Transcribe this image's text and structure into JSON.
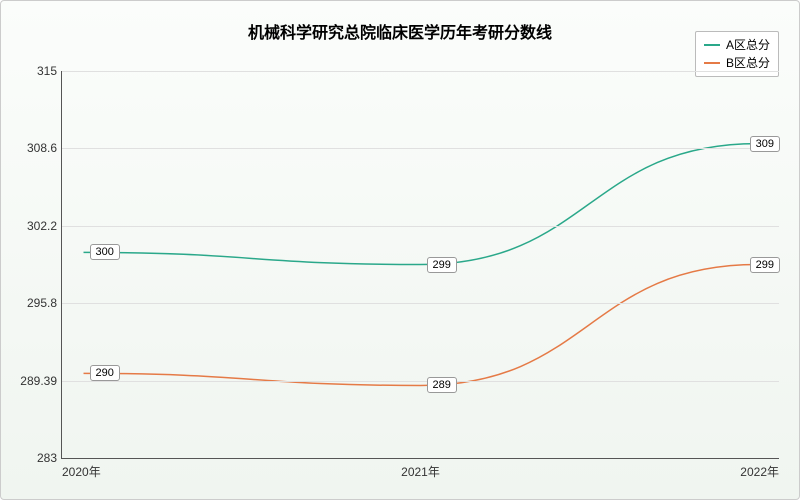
{
  "chart": {
    "type": "line",
    "title": "机械科学研究总院临床医学历年考研分数线",
    "title_fontsize": 16,
    "background_gradient": [
      "#fbfdfb",
      "#f0f5f0"
    ],
    "border_color": "#cccccc",
    "grid_color": "#e0e0e0",
    "axis_color": "#555555",
    "label_fontsize": 12,
    "datalabel_fontsize": 11,
    "ylim": [
      283,
      315
    ],
    "yticks": [
      283,
      289.39,
      295.8,
      302.2,
      308.6,
      315
    ],
    "ytick_labels": [
      "283",
      "289.39",
      "295.8",
      "302.2",
      "308.6",
      "315"
    ],
    "x_categories": [
      "2020年",
      "2021年",
      "2022年"
    ],
    "x_positions_pct": [
      3,
      50,
      97
    ],
    "legend": {
      "position": "top-right",
      "border_color": "#bbbbbb",
      "bg_color": "#ffffff"
    },
    "series": [
      {
        "name": "A区总分",
        "color": "#2aa88a",
        "line_width": 1.5,
        "values": [
          300,
          299,
          309
        ],
        "labels": [
          "300",
          "299",
          "309"
        ]
      },
      {
        "name": "B区总分",
        "color": "#e57a46",
        "line_width": 1.5,
        "values": [
          290,
          289,
          299
        ],
        "labels": [
          "290",
          "289",
          "299"
        ]
      }
    ]
  }
}
